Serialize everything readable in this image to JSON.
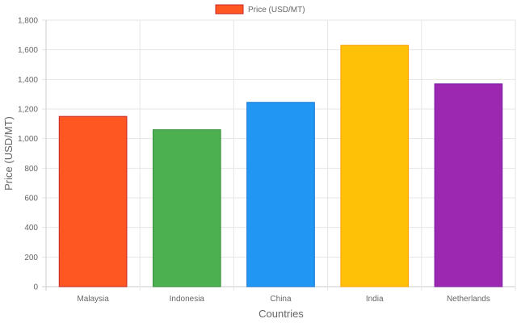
{
  "chart_data": {
    "type": "bar",
    "title": "",
    "categories": [
      "Malaysia",
      "Indonesia",
      "China",
      "India",
      "Netherlands"
    ],
    "series": [
      {
        "name": "Price (USD/MT)",
        "values": [
          1150,
          1060,
          1245,
          1630,
          1370
        ]
      }
    ],
    "bar_colors": [
      "#FF5722",
      "#4CAF50",
      "#2196F3",
      "#FFC107",
      "#9C27B0"
    ],
    "bar_border_colors": [
      "#C62828",
      "#388E3C",
      "#1976D2",
      "#FFA000",
      "#7B1FA2"
    ],
    "legend_swatch_color": "#FF5722",
    "legend_position": "top",
    "xlabel": "Countries",
    "ylabel": "Price (USD/MT)",
    "ylim": [
      0,
      1800
    ],
    "y_ticks": [
      "0",
      "200",
      "400",
      "600",
      "800",
      "1,000",
      "1,200",
      "1,400",
      "1,600",
      "1,800"
    ],
    "grid": true
  }
}
